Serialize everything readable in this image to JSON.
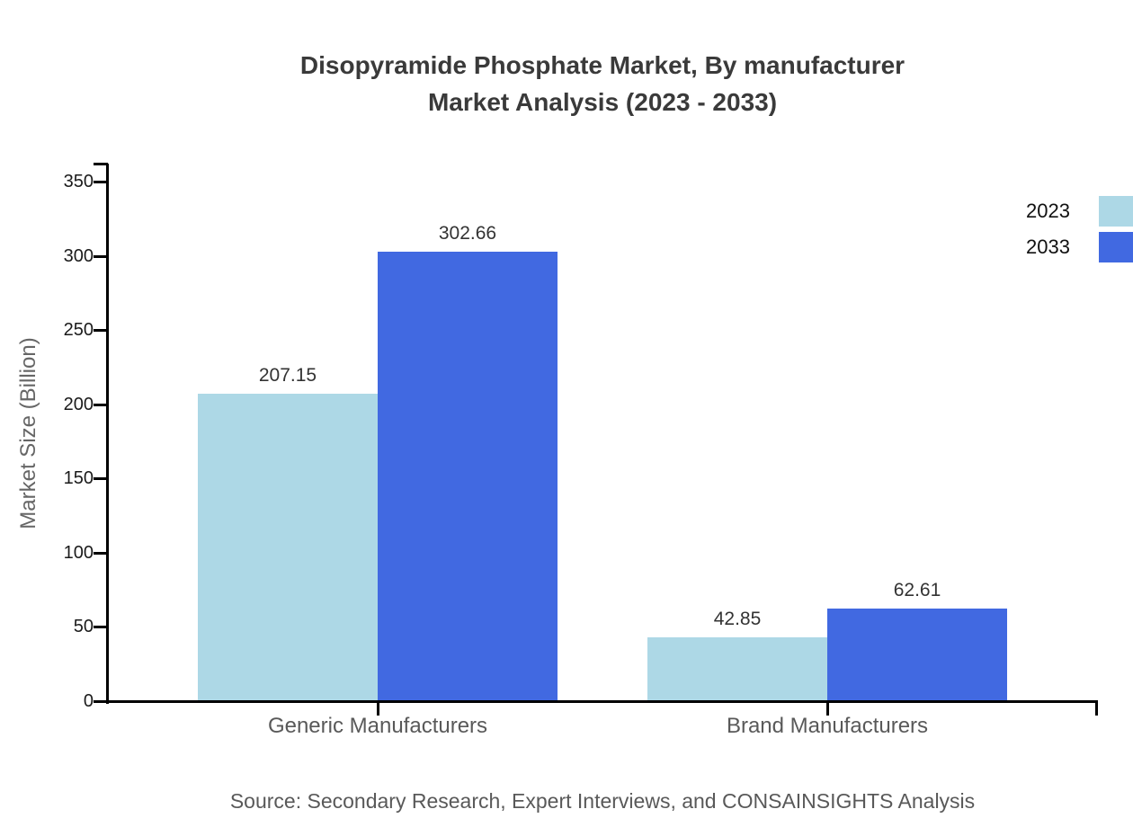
{
  "chart_data": {
    "type": "bar",
    "title": "Disopyramide Phosphate Market, By manufacturer Market Analysis (2023 - 2033)",
    "title_lines": [
      "Disopyramide Phosphate Market, By manufacturer",
      "Market Analysis (2023 - 2033)"
    ],
    "categories": [
      "Generic Manufacturers",
      "Brand Manufacturers"
    ],
    "series": [
      {
        "name": "2023",
        "values": [
          207.15,
          42.85
        ],
        "color": "#add8e6"
      },
      {
        "name": "2033",
        "values": [
          302.66,
          62.61
        ],
        "color": "#4169e1"
      }
    ],
    "value_labels": [
      [
        "207.15",
        "302.66"
      ],
      [
        "42.85",
        "62.61"
      ]
    ],
    "xlabel": "",
    "ylabel": "Market Size (Billion)",
    "ylim": [
      0,
      350
    ],
    "yticks": [
      0,
      50,
      100,
      150,
      200,
      250,
      300,
      350
    ],
    "grid": false,
    "legend_position": "top-right",
    "source": "Source: Secondary Research, Expert Interviews, and CONSAINSIGHTS Analysis"
  }
}
